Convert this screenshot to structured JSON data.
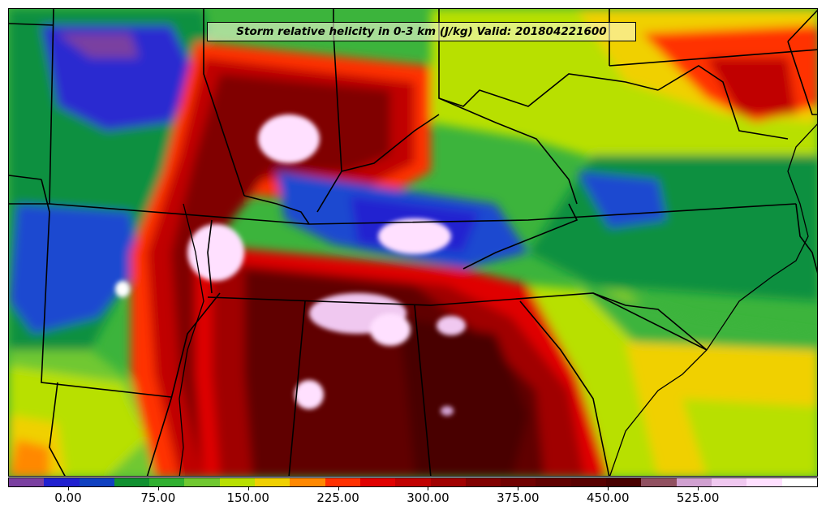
{
  "title": "Storm relative helicity in 0-3 km (J/kg) Valid: 201804221600",
  "colorbar": {
    "colors": [
      "#7a3fa0",
      "#2020d0",
      "#1040c0",
      "#109030",
      "#30b030",
      "#70c830",
      "#b8e000",
      "#f0d000",
      "#ff8800",
      "#ff3000",
      "#e00000",
      "#c00000",
      "#a00000",
      "#800000",
      "#700000",
      "#600000",
      "#580000",
      "#480000",
      "#905060",
      "#d0a0d0",
      "#f0c8f0",
      "#ffe0ff",
      "#ffffff"
    ],
    "tick_labels": [
      "0.00",
      "75.00",
      "150.00",
      "225.00",
      "300.00",
      "375.00",
      "450.00",
      "525.00"
    ],
    "tick_values": [
      0,
      75,
      150,
      225,
      300,
      375,
      450,
      525
    ],
    "range": [
      -50,
      625
    ]
  },
  "map": {
    "background": "#30b030",
    "boundary_color": "#000000"
  }
}
